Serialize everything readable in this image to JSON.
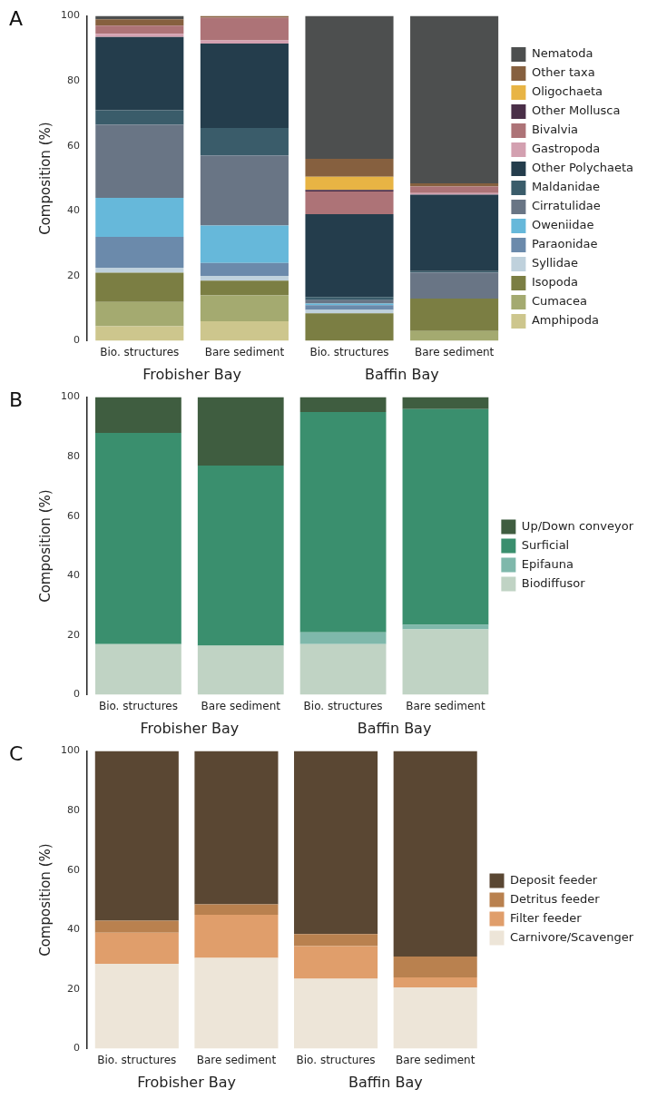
{
  "chart_data": [
    {
      "type": "bar",
      "title": "A",
      "ylabel": "Composition (%)",
      "categories": [
        "Bio. structures",
        "Bare sediment",
        "Bio. structures",
        "Bare sediment"
      ],
      "stacked": true,
      "ylim": [
        0,
        100
      ],
      "yticks": [
        0,
        20,
        40,
        60,
        80,
        100
      ],
      "grid": false,
      "legend": "right",
      "annotations": [
        "Frobisher Bay",
        "Baffin Bay"
      ],
      "series": [
        {
          "name": "Amphipoda",
          "color": "#cdc68d",
          "values": [
            4.5,
            6,
            0,
            0
          ]
        },
        {
          "name": "Cumacea",
          "color": "#a4aa70",
          "values": [
            7.5,
            8,
            0,
            3
          ]
        },
        {
          "name": "Isopoda",
          "color": "#7b7e43",
          "values": [
            9,
            4.5,
            8.5,
            10
          ]
        },
        {
          "name": "Syllidae",
          "color": "#bfd1dc",
          "values": [
            1.5,
            1.5,
            1,
            0
          ]
        },
        {
          "name": "Paraonidae",
          "color": "#6b8aab",
          "values": [
            9.5,
            4,
            1.5,
            0
          ]
        },
        {
          "name": "Oweniidae",
          "color": "#66b8da",
          "values": [
            12,
            11.5,
            0.5,
            0
          ]
        },
        {
          "name": "Cirratulidae",
          "color": "#697585",
          "values": [
            22.5,
            21.5,
            1,
            8
          ]
        },
        {
          "name": "Maldanidae",
          "color": "#3a5c6a",
          "values": [
            4.5,
            8.5,
            1,
            0.5
          ]
        },
        {
          "name": "Other Polychaeta",
          "color": "#243d4c",
          "values": [
            22.5,
            26,
            25.5,
            23.5
          ]
        },
        {
          "name": "Gastropoda",
          "color": "#d3a0b0",
          "values": [
            1,
            1,
            0,
            0.5
          ]
        },
        {
          "name": "Bivalvia",
          "color": "#ad7377",
          "values": [
            2.5,
            7,
            7,
            2
          ]
        },
        {
          "name": "Other Mollusca",
          "color": "#4a2f48",
          "values": [
            0,
            0,
            0.5,
            0
          ]
        },
        {
          "name": "Oligochaeta",
          "color": "#e8b444",
          "values": [
            0,
            0,
            4,
            0
          ]
        },
        {
          "name": "Other taxa",
          "color": "#86603f",
          "values": [
            2,
            0.5,
            5.5,
            1
          ]
        },
        {
          "name": "Nematoda",
          "color": "#4d4f4f",
          "values": [
            1,
            0,
            44,
            51.5
          ]
        }
      ]
    },
    {
      "type": "bar",
      "title": "B",
      "ylabel": "Composition (%)",
      "categories": [
        "Bio. structures",
        "Bare sediment",
        "Bio. structures",
        "Bare sediment"
      ],
      "stacked": true,
      "ylim": [
        0,
        100
      ],
      "yticks": [
        0,
        20,
        40,
        60,
        80,
        100
      ],
      "grid": false,
      "legend": "right",
      "annotations": [
        "Frobisher Bay",
        "Baffin Bay"
      ],
      "series": [
        {
          "name": "Biodiffusor",
          "color": "#c0d3c4",
          "values": [
            17,
            16.5,
            17,
            22
          ]
        },
        {
          "name": "Epifauna",
          "color": "#7fb8ab",
          "values": [
            0,
            0,
            4,
            1.5
          ]
        },
        {
          "name": "Surficial",
          "color": "#3a8f6e",
          "values": [
            71,
            60.5,
            74,
            72.5
          ]
        },
        {
          "name": "Up/Down conveyor",
          "color": "#3f5d40",
          "values": [
            12,
            23,
            5,
            4
          ]
        }
      ]
    },
    {
      "type": "bar",
      "title": "C",
      "ylabel": "Composition (%)",
      "categories": [
        "Bio. structures",
        "Bare sediment",
        "Bio. structures",
        "Bare sediment"
      ],
      "stacked": true,
      "ylim": [
        0,
        100
      ],
      "yticks": [
        0,
        20,
        40,
        60,
        80,
        100
      ],
      "grid": false,
      "legend": "right",
      "annotations": [
        "Frobisher Bay",
        "Baffin Bay"
      ],
      "series": [
        {
          "name": "Carnivore/Scavenger",
          "color": "#ede5d8",
          "values": [
            28.5,
            30.5,
            23.5,
            20.5
          ]
        },
        {
          "name": "Filter feeder",
          "color": "#e09e6b",
          "values": [
            10.5,
            14.5,
            11,
            3.5
          ]
        },
        {
          "name": "Detritus feeder",
          "color": "#b9814f",
          "values": [
            4,
            3.5,
            4,
            7
          ]
        },
        {
          "name": "Deposit feeder",
          "color": "#5a4733",
          "values": [
            57,
            51.5,
            61.5,
            69
          ]
        }
      ]
    }
  ]
}
